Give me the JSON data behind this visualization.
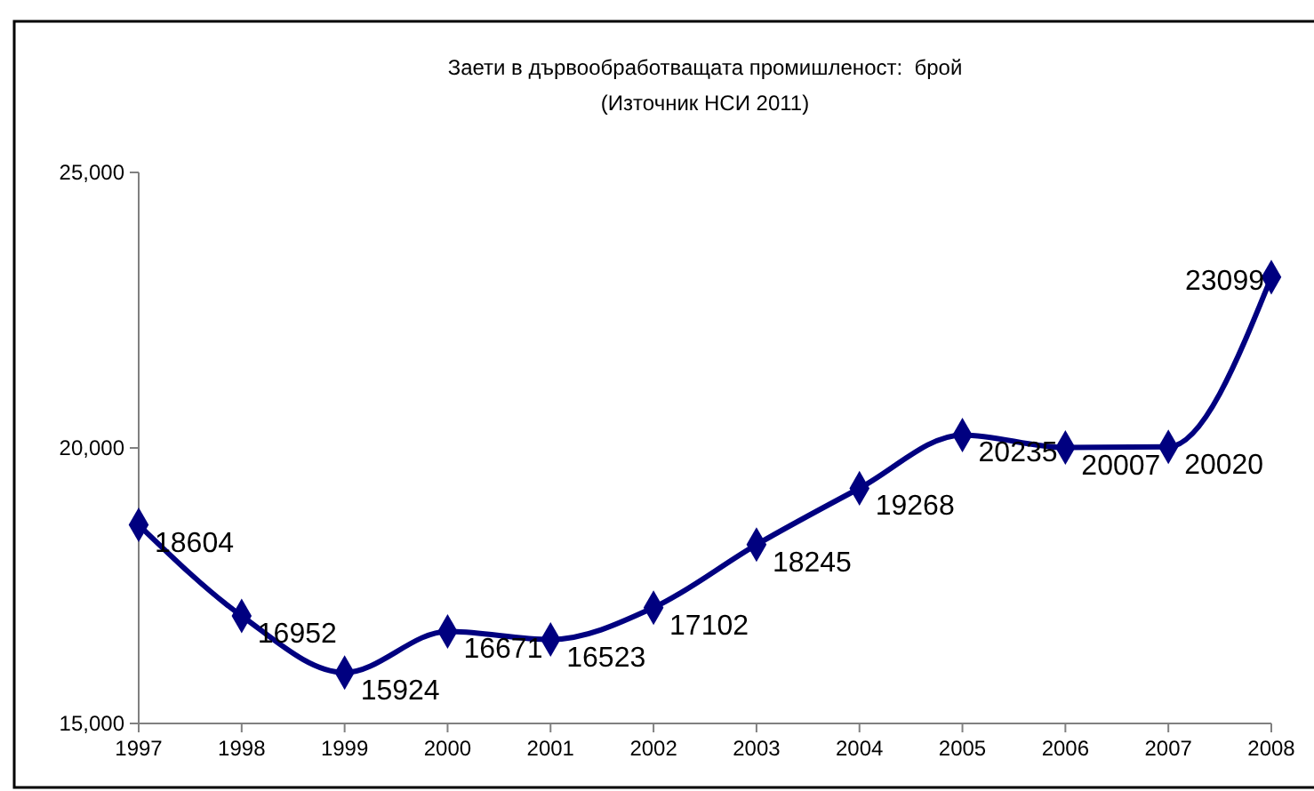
{
  "chart_data": {
    "type": "line",
    "title": "Заети в дървообработващата промишленост:  брой",
    "subtitle": "(Източник НСИ 2011)",
    "x": [
      1997,
      1998,
      1999,
      2000,
      2001,
      2002,
      2003,
      2004,
      2005,
      2006,
      2007,
      2008
    ],
    "series": [
      {
        "color": "#000080",
        "values": [
          18604,
          16952,
          15924,
          16671,
          16523,
          17102,
          18245,
          19268,
          20235,
          20007,
          20020,
          23099
        ]
      }
    ],
    "xlim": [
      1997,
      2008
    ],
    "xticks": [
      1997,
      1998,
      1999,
      2000,
      2001,
      2002,
      2003,
      2004,
      2005,
      2006,
      2007,
      2008
    ],
    "ylim": [
      15000,
      25000
    ],
    "yticks": [
      {
        "value": 15000,
        "label": "15,000"
      },
      {
        "value": 20000,
        "label": "20,000"
      },
      {
        "value": 25000,
        "label": "25,000"
      }
    ],
    "marker": "diamond",
    "line_style": "solid",
    "data_labels": true,
    "grid": false
  }
}
